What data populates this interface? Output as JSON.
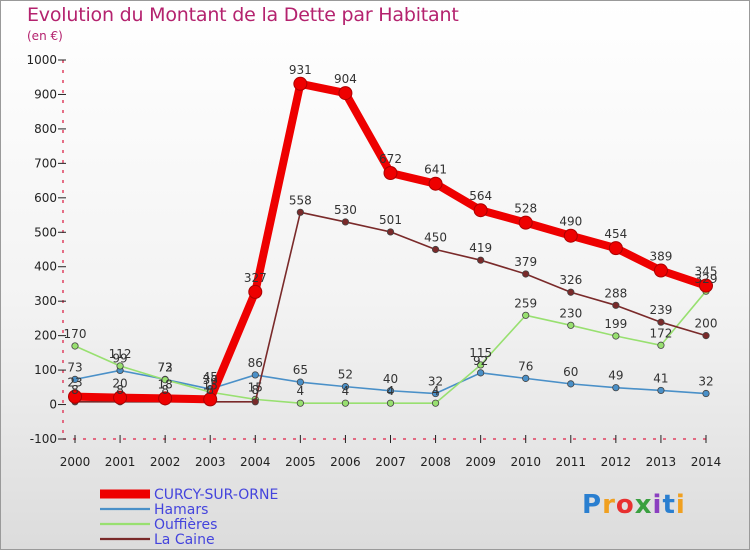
{
  "title": "Evolution du Montant de la Dette par Habitant",
  "unit_label": "(en €)",
  "logo_text": "Proxiti",
  "chart_data": {
    "type": "line",
    "title": "Evolution du Montant de la Dette par Habitant",
    "ylabel": "(en €)",
    "xlabel": "",
    "ylim": [
      -100,
      1000
    ],
    "yticks": [
      -100,
      0,
      100,
      200,
      300,
      400,
      500,
      600,
      700,
      800,
      900,
      1000
    ],
    "grid": false,
    "legend_position": "bottom-left",
    "x": [
      "2000",
      "2001",
      "2002",
      "2003",
      "2004",
      "2005",
      "2006",
      "2007",
      "2008",
      "2009",
      "2010",
      "2011",
      "2012",
      "2013",
      "2014"
    ],
    "series": [
      {
        "name": "CURCY-SUR-ORNE",
        "color": "#ee0000",
        "values": [
          23,
          20,
          18,
          15,
          327,
          931,
          904,
          672,
          641,
          564,
          528,
          490,
          454,
          389,
          345
        ]
      },
      {
        "name": "Hamars",
        "color": "#4a90c8",
        "values": [
          73,
          99,
          73,
          45,
          86,
          65,
          52,
          40,
          32,
          92,
          76,
          60,
          49,
          41,
          32
        ]
      },
      {
        "name": "Ouffières",
        "color": "#98e070",
        "values": [
          170,
          112,
          72,
          36,
          15,
          4,
          4,
          4,
          4,
          115,
          259,
          230,
          199,
          172,
          329
        ]
      },
      {
        "name": "La Caine",
        "color": "#7a2a2a",
        "values": [
          8,
          8,
          8,
          8,
          8,
          558,
          530,
          501,
          450,
          419,
          379,
          326,
          288,
          239,
          200
        ]
      }
    ]
  }
}
